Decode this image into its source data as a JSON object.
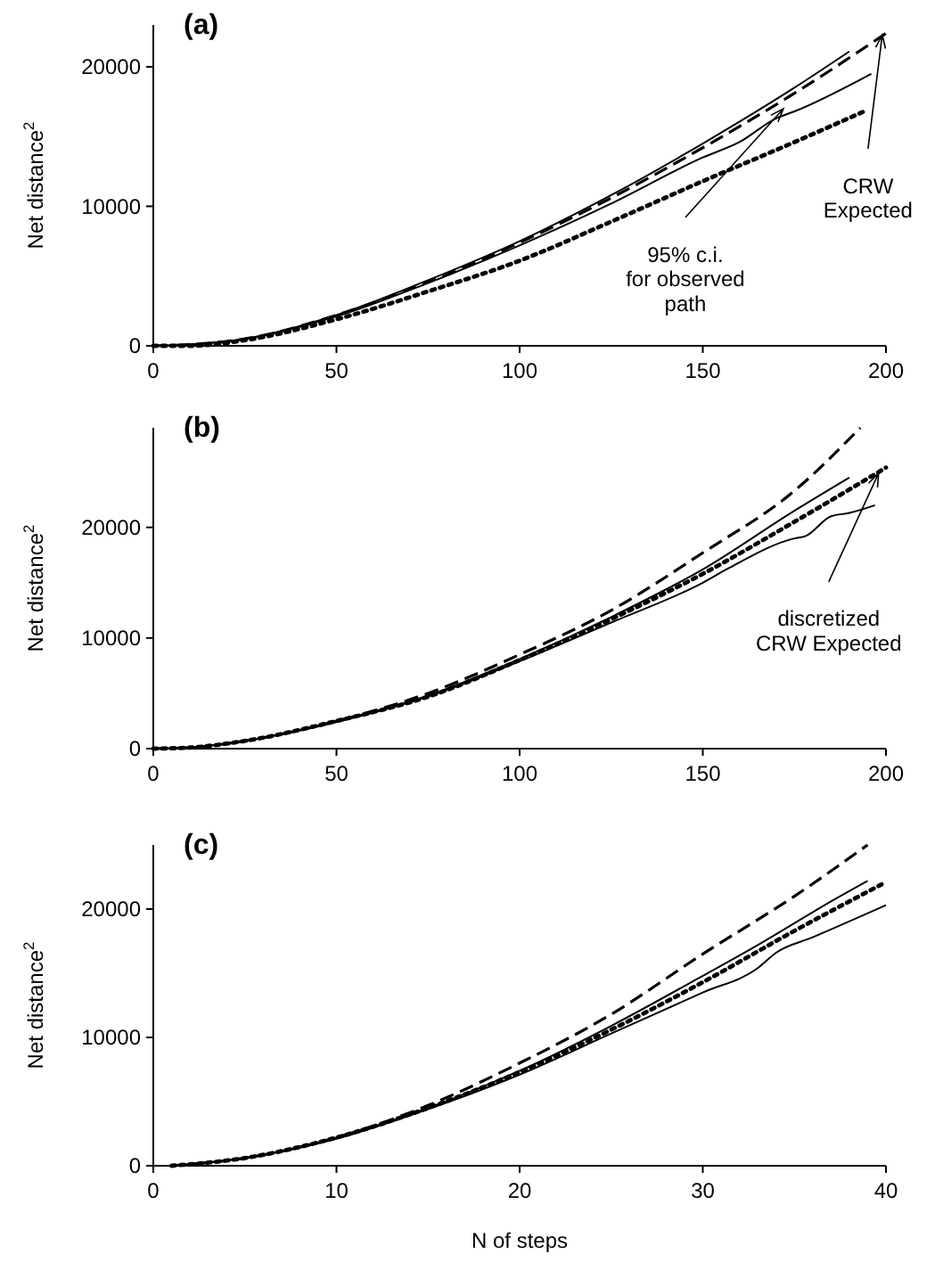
{
  "chart_data": [
    {
      "type": "line",
      "title": "(a)",
      "ylabel": "Net distance$^{2}$",
      "xlim": [
        0,
        200
      ],
      "xticks": [
        0,
        50,
        100,
        150,
        200
      ],
      "ylim": [
        0,
        23000
      ],
      "yticks": [
        0,
        10000,
        20000
      ],
      "series": [
        {
          "color": "#000000",
          "line_style": "solid",
          "x": [
            0,
            10,
            25,
            50,
            75,
            100,
            125,
            150,
            175,
            190
          ],
          "values": [
            0,
            100,
            500,
            2200,
            4700,
            7500,
            10800,
            14500,
            18500,
            21100
          ]
        },
        {
          "color": "#000000",
          "line_style": "solid",
          "x": [
            0,
            10,
            25,
            50,
            75,
            100,
            125,
            150,
            160,
            170,
            175,
            196
          ],
          "values": [
            0,
            100,
            500,
            2100,
            4500,
            7200,
            10200,
            13500,
            14600,
            16300,
            16800,
            19500
          ]
        },
        {
          "color": "#000000",
          "line_style": "dashed",
          "x": [
            0,
            10,
            25,
            50,
            75,
            100,
            125,
            150,
            175,
            200
          ],
          "values": [
            0,
            100,
            500,
            2200,
            4600,
            7400,
            10600,
            14200,
            18100,
            22400
          ]
        },
        {
          "color": "#000000",
          "line_style": "dotted",
          "x": [
            0,
            10,
            25,
            50,
            75,
            100,
            125,
            150,
            175,
            194
          ],
          "values": [
            0,
            0,
            400,
            1900,
            3900,
            6100,
            8900,
            11800,
            14600,
            16800
          ]
        }
      ],
      "annotations": [
        {
          "text": "95% c.i.\nfor observed\npath",
          "x": 172,
          "y": 17000
        },
        {
          "text": "CRW\nExpected",
          "x": 199,
          "y": 22300
        }
      ]
    },
    {
      "type": "line",
      "title": "(b)",
      "ylabel": "Net distance$^{2}$",
      "xlim": [
        0,
        200
      ],
      "xticks": [
        0,
        50,
        100,
        150,
        200
      ],
      "ylim": [
        0,
        29000
      ],
      "yticks": [
        0,
        10000,
        20000
      ],
      "series": [
        {
          "color": "#000000",
          "line_style": "solid",
          "x": [
            0,
            10,
            25,
            50,
            75,
            100,
            125,
            150,
            175,
            190
          ],
          "values": [
            0,
            100,
            700,
            2500,
            4800,
            8100,
            11900,
            16200,
            21500,
            24500
          ]
        },
        {
          "color": "#000000",
          "line_style": "solid",
          "x": [
            0,
            10,
            25,
            50,
            75,
            100,
            125,
            150,
            157,
            175,
            178,
            185,
            190,
            197
          ],
          "values": [
            0,
            100,
            700,
            2400,
            4700,
            7900,
            11400,
            15000,
            16300,
            19000,
            19200,
            21000,
            21300,
            22000
          ]
        },
        {
          "color": "#000000",
          "line_style": "dashed",
          "x": [
            0,
            10,
            25,
            50,
            75,
            100,
            125,
            150,
            175,
            193
          ],
          "values": [
            0,
            100,
            700,
            2500,
            5000,
            8500,
            12500,
            17700,
            23300,
            29000
          ]
        },
        {
          "color": "#000000",
          "line_style": "dotted",
          "x": [
            0,
            10,
            25,
            50,
            75,
            100,
            125,
            150,
            175,
            200
          ],
          "values": [
            0,
            100,
            700,
            2500,
            4700,
            8000,
            11700,
            15800,
            20500,
            25400
          ]
        }
      ],
      "annotations": [
        {
          "text": "discretized\nCRW Expected",
          "x": 198,
          "y": 24900
        }
      ]
    },
    {
      "type": "line",
      "title": "(c)",
      "xlabel": "N of steps",
      "ylabel": "Net distance$^{2}$",
      "xlim": [
        0,
        40
      ],
      "xticks": [
        0,
        10,
        20,
        30,
        40
      ],
      "ylim": [
        0,
        25000
      ],
      "yticks": [
        0,
        10000,
        20000
      ],
      "series": [
        {
          "color": "#000000",
          "line_style": "solid",
          "x": [
            1,
            5,
            10,
            15,
            20,
            25,
            30,
            33,
            35,
            37,
            39
          ],
          "values": [
            0,
            600,
            2200,
            4500,
            7400,
            10900,
            14800,
            17200,
            18900,
            20600,
            22200
          ]
        },
        {
          "color": "#000000",
          "line_style": "solid",
          "x": [
            1,
            5,
            10,
            15,
            20,
            25,
            30,
            33,
            34,
            36,
            40
          ],
          "values": [
            0,
            600,
            2100,
            4400,
            7100,
            10300,
            13500,
            15400,
            16600,
            17800,
            20300
          ]
        },
        {
          "color": "#000000",
          "line_style": "dashed",
          "x": [
            1,
            5,
            10,
            15,
            20,
            25,
            30,
            35,
            39
          ],
          "values": [
            0,
            600,
            2200,
            4700,
            8000,
            11800,
            16500,
            21000,
            25000
          ]
        },
        {
          "color": "#000000",
          "line_style": "dotted",
          "x": [
            1,
            5,
            10,
            15,
            20,
            25,
            30,
            35,
            40
          ],
          "values": [
            0,
            600,
            2200,
            4500,
            7300,
            10600,
            14300,
            18300,
            22100
          ]
        }
      ]
    }
  ]
}
